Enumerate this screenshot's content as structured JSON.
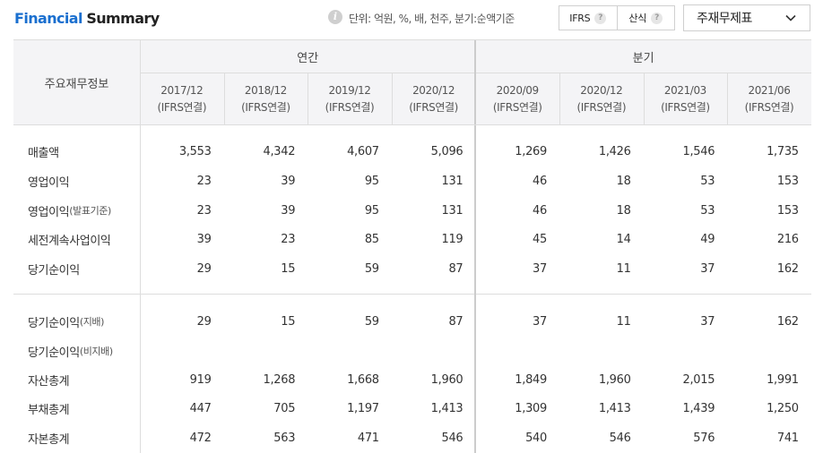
{
  "header": {
    "title_part1": "Financial",
    "title_part2": "Summary",
    "info_icon": "info-icon",
    "unit_note": "단위: 억원, %, 배, 천주, 분기:순액기준",
    "toggle": {
      "ifrs_label": "IFRS",
      "sansik_label": "산식",
      "help_icon": "question-icon",
      "help_glyph": "?"
    },
    "select_value": "주재무제표",
    "select_icon": "chevron-down-icon"
  },
  "table": {
    "row_header": "주요재무정보",
    "groups": [
      "연간",
      "분기"
    ],
    "periods": [
      {
        "date": "2017/12",
        "basis": "(IFRS연결)"
      },
      {
        "date": "2018/12",
        "basis": "(IFRS연결)"
      },
      {
        "date": "2019/12",
        "basis": "(IFRS연결)"
      },
      {
        "date": "2020/12",
        "basis": "(IFRS연결)"
      },
      {
        "date": "2020/09",
        "basis": "(IFRS연결)"
      },
      {
        "date": "2020/12",
        "basis": "(IFRS연결)"
      },
      {
        "date": "2021/03",
        "basis": "(IFRS연결)"
      },
      {
        "date": "2021/06",
        "basis": "(IFRS연결)"
      }
    ],
    "rows": [
      {
        "label": "매출액",
        "sub": "",
        "values": [
          "3,553",
          "4,342",
          "4,607",
          "5,096",
          "1,269",
          "1,426",
          "1,546",
          "1,735"
        ]
      },
      {
        "label": "영업이익",
        "sub": "",
        "values": [
          "23",
          "39",
          "95",
          "131",
          "46",
          "18",
          "53",
          "153"
        ]
      },
      {
        "label": "영업이익",
        "sub": "(발표기준)",
        "values": [
          "23",
          "39",
          "95",
          "131",
          "46",
          "18",
          "53",
          "153"
        ]
      },
      {
        "label": "세전계속사업이익",
        "sub": "",
        "values": [
          "39",
          "23",
          "85",
          "119",
          "45",
          "14",
          "49",
          "216"
        ]
      },
      {
        "label": "당기순이익",
        "sub": "",
        "values": [
          "29",
          "15",
          "59",
          "87",
          "37",
          "11",
          "37",
          "162"
        ]
      },
      {
        "label": "당기순이익",
        "sub": "(지배)",
        "values": [
          "29",
          "15",
          "59",
          "87",
          "37",
          "11",
          "37",
          "162"
        ]
      },
      {
        "label": "당기순이익",
        "sub": "(비지배)",
        "values": [
          "",
          "",
          "",
          "",
          "",
          "",
          "",
          ""
        ]
      },
      {
        "label": "자산총계",
        "sub": "",
        "values": [
          "919",
          "1,268",
          "1,668",
          "1,960",
          "1,849",
          "1,960",
          "2,015",
          "1,991"
        ]
      },
      {
        "label": "부채총계",
        "sub": "",
        "values": [
          "447",
          "705",
          "1,197",
          "1,413",
          "1,309",
          "1,413",
          "1,439",
          "1,250"
        ]
      },
      {
        "label": "자본총계",
        "sub": "",
        "values": [
          "472",
          "563",
          "471",
          "546",
          "540",
          "546",
          "576",
          "741"
        ]
      }
    ]
  }
}
